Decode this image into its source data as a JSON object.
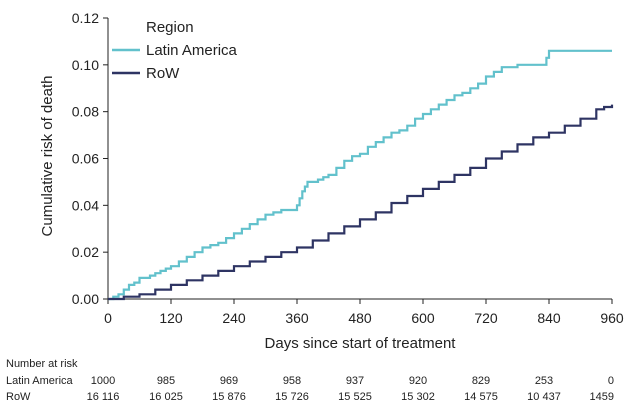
{
  "chart_data": {
    "type": "line",
    "step": true,
    "title": "",
    "xlabel": "Days since start of treatment",
    "ylabel": "Cumulative risk of death",
    "xlim": [
      0,
      960
    ],
    "ylim": [
      0,
      0.12
    ],
    "xticks": [
      0,
      120,
      240,
      360,
      480,
      600,
      720,
      840,
      960
    ],
    "xtick_labels": [
      "0",
      "120",
      "240",
      "360",
      "480",
      "600",
      "720",
      "840",
      "960"
    ],
    "yticks": [
      0,
      0.02,
      0.04,
      0.06,
      0.08,
      0.1,
      0.12
    ],
    "ytick_labels": [
      "0.00",
      "0.02",
      "0.04",
      "0.06",
      "0.08",
      "0.10",
      "0.12"
    ],
    "grid": false,
    "legend": {
      "title": "Region",
      "placement": "top-left"
    },
    "series": [
      {
        "name": "Latin America",
        "color": "#62c1cc",
        "x": [
          0,
          10,
          20,
          30,
          40,
          50,
          60,
          70,
          80,
          90,
          100,
          110,
          120,
          135,
          150,
          165,
          180,
          195,
          210,
          225,
          240,
          255,
          270,
          285,
          300,
          315,
          330,
          345,
          360,
          365,
          370,
          375,
          380,
          390,
          400,
          410,
          420,
          435,
          450,
          465,
          480,
          495,
          510,
          525,
          540,
          555,
          570,
          585,
          600,
          615,
          630,
          645,
          660,
          675,
          690,
          705,
          720,
          735,
          750,
          765,
          780,
          795,
          810,
          825,
          835,
          840,
          870,
          900,
          930,
          960
        ],
        "y": [
          0,
          0.001,
          0.002,
          0.004,
          0.006,
          0.007,
          0.009,
          0.009,
          0.01,
          0.011,
          0.012,
          0.013,
          0.014,
          0.016,
          0.018,
          0.02,
          0.022,
          0.023,
          0.024,
          0.026,
          0.028,
          0.03,
          0.032,
          0.034,
          0.036,
          0.037,
          0.038,
          0.038,
          0.04,
          0.043,
          0.046,
          0.048,
          0.05,
          0.05,
          0.051,
          0.052,
          0.053,
          0.056,
          0.059,
          0.061,
          0.062,
          0.065,
          0.067,
          0.069,
          0.071,
          0.072,
          0.074,
          0.077,
          0.079,
          0.081,
          0.083,
          0.085,
          0.087,
          0.088,
          0.09,
          0.092,
          0.095,
          0.097,
          0.099,
          0.099,
          0.1,
          0.1,
          0.1,
          0.1,
          0.103,
          0.106,
          0.106,
          0.106,
          0.106,
          0.106
        ]
      },
      {
        "name": "RoW",
        "color": "#2e3463",
        "x": [
          0,
          30,
          60,
          90,
          120,
          150,
          180,
          210,
          240,
          270,
          300,
          330,
          360,
          390,
          420,
          450,
          480,
          510,
          540,
          570,
          600,
          630,
          660,
          690,
          720,
          750,
          780,
          810,
          840,
          870,
          900,
          930,
          945,
          960
        ],
        "y": [
          0,
          0.001,
          0.002,
          0.004,
          0.006,
          0.008,
          0.01,
          0.012,
          0.014,
          0.016,
          0.018,
          0.02,
          0.022,
          0.025,
          0.028,
          0.031,
          0.034,
          0.037,
          0.041,
          0.044,
          0.047,
          0.05,
          0.053,
          0.056,
          0.06,
          0.063,
          0.066,
          0.069,
          0.071,
          0.074,
          0.077,
          0.081,
          0.082,
          0.083
        ]
      }
    ]
  },
  "risk_table": {
    "title": "Number at risk",
    "rows": [
      {
        "label": "Latin America",
        "values": [
          "1000",
          "985",
          "969",
          "958",
          "937",
          "920",
          "829",
          "253",
          "0"
        ]
      },
      {
        "label": "RoW",
        "values": [
          "16 116",
          "16 025",
          "15 876",
          "15 726",
          "15 525",
          "15 302",
          "14 575",
          "10 437",
          "1459"
        ]
      }
    ]
  }
}
